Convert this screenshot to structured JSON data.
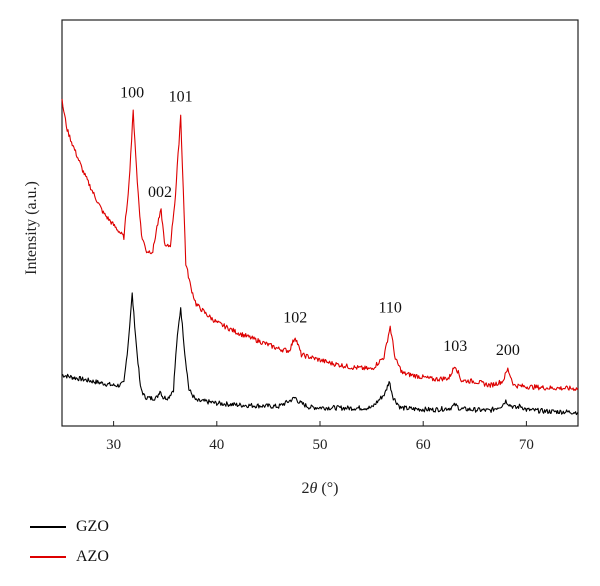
{
  "chart_data": {
    "type": "line",
    "xlabel_prefix": "2",
    "xlabel_theta": "θ",
    "xlabel_unit": " (°)",
    "ylabel": "Intensity (a.u.)",
    "xlim": [
      25,
      75
    ],
    "ylim": [
      0,
      1
    ],
    "x_ticks": [
      "30",
      "40",
      "50",
      "60",
      "70"
    ],
    "x_tick_values": [
      30,
      40,
      50,
      60,
      70
    ],
    "y_ticks_labeled": false,
    "legend_position": "bottom-left",
    "series": [
      {
        "name": "GZO",
        "color": "#000000",
        "x": [
          25,
          26,
          27,
          28,
          29,
          30,
          30.5,
          31.0,
          31.4,
          31.8,
          32.2,
          32.6,
          33.0,
          33.6,
          34.2,
          34.5,
          34.8,
          35.3,
          35.8,
          36.1,
          36.5,
          36.9,
          37.3,
          38,
          39,
          40,
          42,
          44,
          46,
          47.2,
          47.6,
          48.0,
          49,
          51,
          53,
          55,
          56.3,
          56.7,
          57.1,
          57.8,
          59,
          61,
          62.6,
          63.1,
          63.6,
          65,
          66.5,
          67.6,
          68.0,
          68.4,
          69.0,
          69.4,
          70,
          72,
          75
        ],
        "y": [
          0.126,
          0.12,
          0.115,
          0.11,
          0.105,
          0.1,
          0.1,
          0.105,
          0.2,
          0.325,
          0.2,
          0.095,
          0.072,
          0.068,
          0.07,
          0.088,
          0.07,
          0.07,
          0.09,
          0.2,
          0.293,
          0.18,
          0.09,
          0.062,
          0.06,
          0.056,
          0.052,
          0.05,
          0.048,
          0.064,
          0.07,
          0.058,
          0.046,
          0.045,
          0.044,
          0.045,
          0.08,
          0.11,
          0.07,
          0.045,
          0.042,
          0.04,
          0.044,
          0.052,
          0.042,
          0.04,
          0.038,
          0.05,
          0.062,
          0.052,
          0.044,
          0.05,
          0.04,
          0.036,
          0.034
        ]
      },
      {
        "name": "AZO",
        "color": "#dd0000",
        "x": [
          25,
          25.5,
          26,
          27,
          28,
          29,
          30,
          31.0,
          31.5,
          31.9,
          32.3,
          32.7,
          33.2,
          33.8,
          34.2,
          34.6,
          35.0,
          35.5,
          36.0,
          36.5,
          37.0,
          37.5,
          38,
          39,
          40,
          42,
          44,
          46,
          47.0,
          47.6,
          48.2,
          49,
          51,
          53,
          55,
          56.2,
          56.8,
          57.3,
          58,
          59,
          61,
          62.5,
          63.1,
          63.7,
          65,
          66.5,
          67.7,
          68.2,
          68.8,
          70,
          72,
          75
        ],
        "y": [
          0.8,
          0.73,
          0.695,
          0.63,
          0.575,
          0.525,
          0.495,
          0.465,
          0.6,
          0.775,
          0.6,
          0.47,
          0.43,
          0.43,
          0.49,
          0.53,
          0.44,
          0.445,
          0.57,
          0.765,
          0.4,
          0.34,
          0.3,
          0.275,
          0.255,
          0.23,
          0.21,
          0.19,
          0.185,
          0.22,
          0.175,
          0.17,
          0.155,
          0.145,
          0.14,
          0.17,
          0.245,
          0.165,
          0.13,
          0.125,
          0.115,
          0.118,
          0.15,
          0.112,
          0.11,
          0.1,
          0.11,
          0.14,
          0.1,
          0.097,
          0.094,
          0.092
        ]
      }
    ],
    "annotations": [
      {
        "text": "100",
        "x": 31.8,
        "y": 0.775
      },
      {
        "text": "101",
        "x": 36.5,
        "y": 0.765
      },
      {
        "text": "002",
        "x": 34.5,
        "y": 0.53
      },
      {
        "text": "102",
        "x": 47.6,
        "y": 0.22
      },
      {
        "text": "110",
        "x": 56.8,
        "y": 0.245
      },
      {
        "text": "103",
        "x": 63.1,
        "y": 0.15
      },
      {
        "text": "200",
        "x": 68.2,
        "y": 0.14
      }
    ]
  }
}
